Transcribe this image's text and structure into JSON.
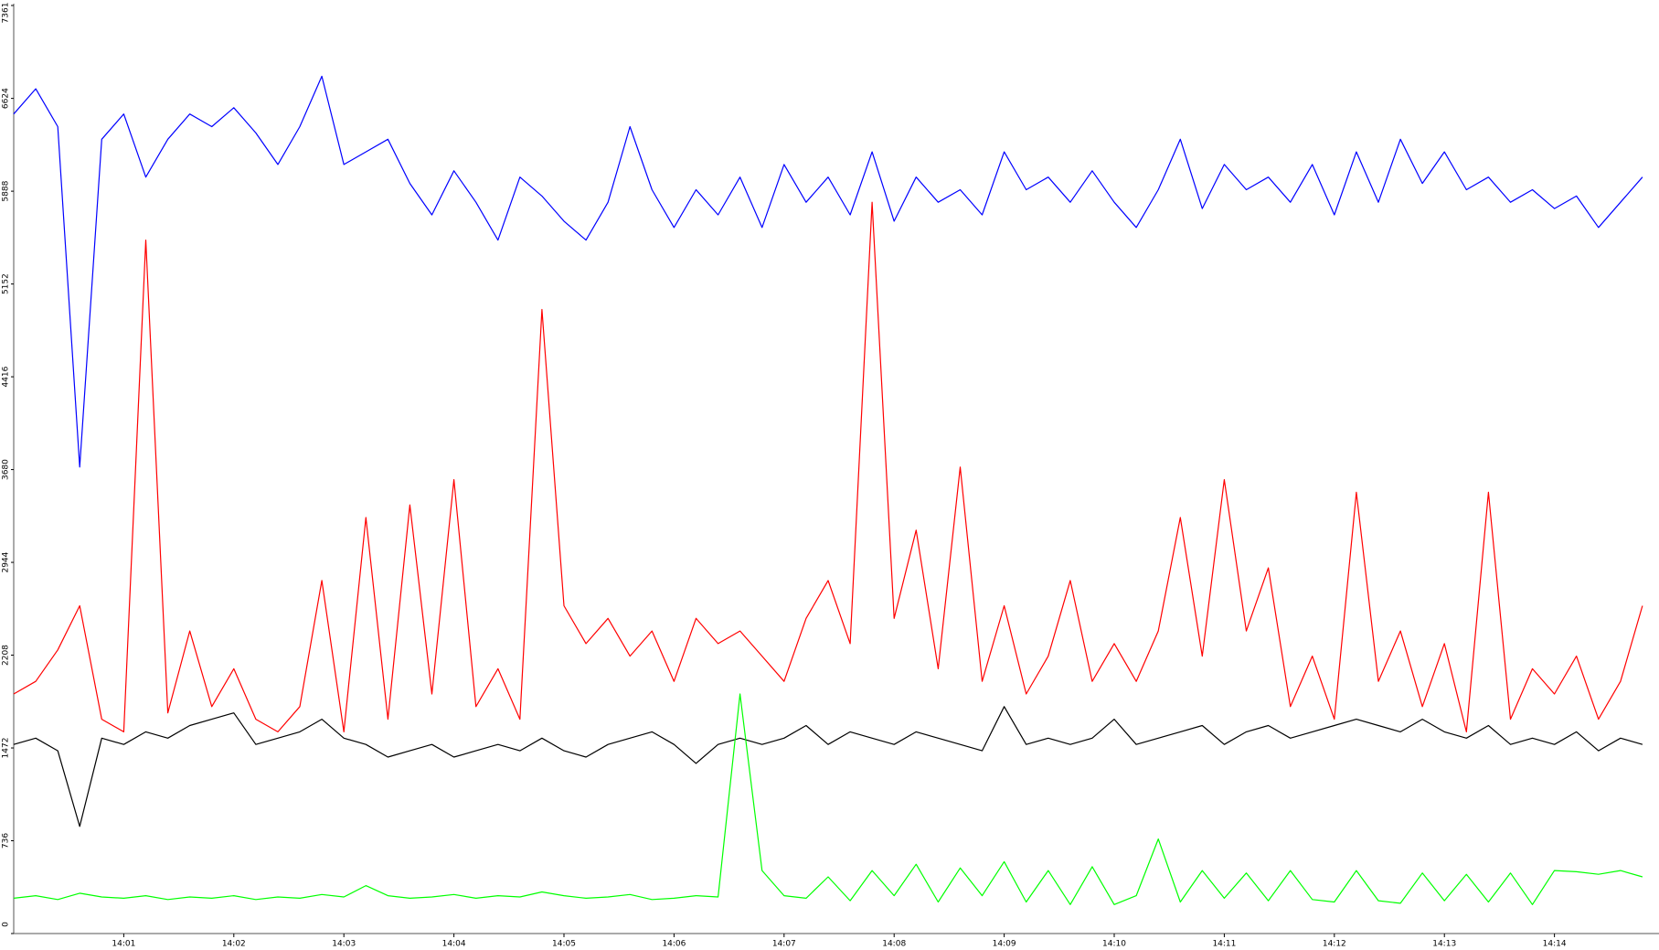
{
  "chart_data": {
    "type": "line",
    "xlim": [
      0,
      14.95
    ],
    "xticks": [
      {
        "value": 1,
        "label": "14:01"
      },
      {
        "value": 2,
        "label": "14:02"
      },
      {
        "value": 3,
        "label": "14:03"
      },
      {
        "value": 4,
        "label": "14:04"
      },
      {
        "value": 5,
        "label": "14:05"
      },
      {
        "value": 6,
        "label": "14:06"
      },
      {
        "value": 7,
        "label": "14:07"
      },
      {
        "value": 8,
        "label": "14:08"
      },
      {
        "value": 9,
        "label": "14:09"
      },
      {
        "value": 10,
        "label": "14:10"
      },
      {
        "value": 11,
        "label": "14:11"
      },
      {
        "value": 12,
        "label": "14:12"
      },
      {
        "value": 13,
        "label": "14:13"
      },
      {
        "value": 14,
        "label": "14:14"
      }
    ],
    "ylim": [
      0,
      7361
    ],
    "yticks": [
      0,
      736,
      1472,
      2208,
      2944,
      3680,
      4416,
      5152,
      5888,
      6624,
      7361
    ],
    "grid": false,
    "x": [
      0,
      0.2,
      0.4,
      0.6,
      0.8,
      1.0,
      1.2,
      1.4,
      1.6,
      1.8,
      2.0,
      2.2,
      2.4,
      2.6,
      2.8,
      3.0,
      3.2,
      3.4,
      3.6,
      3.8,
      4.0,
      4.2,
      4.4,
      4.6,
      4.8,
      5.0,
      5.2,
      5.4,
      5.6,
      5.8,
      6.0,
      6.2,
      6.4,
      6.6,
      6.8,
      7.0,
      7.2,
      7.4,
      7.6,
      7.8,
      8.0,
      8.2,
      8.4,
      8.6,
      8.8,
      9.0,
      9.2,
      9.4,
      9.6,
      9.8,
      10.0,
      10.2,
      10.4,
      10.6,
      10.8,
      11.0,
      11.2,
      11.4,
      11.6,
      11.8,
      12.0,
      12.2,
      12.4,
      12.6,
      12.8,
      13.0,
      13.2,
      13.4,
      13.6,
      13.8,
      14.0,
      14.2,
      14.4,
      14.6,
      14.8
    ],
    "series": [
      {
        "color": "#0000ff",
        "values": [
          6500,
          6700,
          6400,
          3700,
          6300,
          6500,
          6000,
          6300,
          6500,
          6400,
          6550,
          6350,
          6100,
          6400,
          6800,
          6100,
          6200,
          6300,
          5950,
          5700,
          6050,
          5800,
          5500,
          6000,
          5850,
          5650,
          5500,
          5800,
          6400,
          5900,
          5600,
          5900,
          5700,
          6000,
          5600,
          6100,
          5800,
          6000,
          5700,
          6200,
          5650,
          6000,
          5800,
          5900,
          5700,
          6200,
          5900,
          6000,
          5800,
          6050,
          5800,
          5600,
          5900,
          6300,
          5750,
          6100,
          5900,
          6000,
          5800,
          6100,
          5700,
          6200,
          5800,
          6300,
          5950,
          6200,
          5900,
          6000,
          5800,
          5900,
          5750,
          5850,
          5600,
          5800,
          6000
        ]
      },
      {
        "color": "#ff0000",
        "values": [
          1900,
          2000,
          2250,
          2600,
          1700,
          1600,
          5500,
          1750,
          2400,
          1800,
          2100,
          1700,
          1600,
          1800,
          2800,
          1600,
          3300,
          1700,
          3400,
          1900,
          3600,
          1800,
          2100,
          1700,
          4950,
          2600,
          2300,
          2500,
          2200,
          2400,
          2000,
          2500,
          2300,
          2400,
          2200,
          2000,
          2500,
          2800,
          2300,
          5800,
          2500,
          3200,
          2100,
          3700,
          2000,
          2600,
          1900,
          2200,
          2800,
          2000,
          2300,
          2000,
          2400,
          3300,
          2200,
          3600,
          2400,
          2900,
          1800,
          2200,
          1700,
          3500,
          2000,
          2400,
          1800,
          2300,
          1600,
          3500,
          1700,
          2100,
          1900,
          2200,
          1700,
          2000,
          2600
        ]
      },
      {
        "color": "#000000",
        "values": [
          1500,
          1550,
          1450,
          850,
          1550,
          1500,
          1600,
          1550,
          1650,
          1700,
          1750,
          1500,
          1550,
          1600,
          1700,
          1550,
          1500,
          1400,
          1450,
          1500,
          1400,
          1450,
          1500,
          1450,
          1550,
          1450,
          1400,
          1500,
          1550,
          1600,
          1500,
          1350,
          1500,
          1550,
          1500,
          1550,
          1650,
          1500,
          1600,
          1550,
          1500,
          1600,
          1550,
          1500,
          1450,
          1800,
          1500,
          1550,
          1500,
          1550,
          1700,
          1500,
          1550,
          1600,
          1650,
          1500,
          1600,
          1650,
          1550,
          1600,
          1650,
          1700,
          1650,
          1600,
          1700,
          1600,
          1550,
          1650,
          1500,
          1550,
          1500,
          1600,
          1450,
          1550,
          1500
        ]
      },
      {
        "color": "#00ff00",
        "values": [
          280,
          300,
          270,
          320,
          290,
          280,
          300,
          270,
          290,
          280,
          300,
          270,
          290,
          280,
          310,
          290,
          380,
          300,
          280,
          290,
          310,
          280,
          300,
          290,
          330,
          300,
          280,
          290,
          310,
          270,
          280,
          300,
          290,
          1900,
          500,
          300,
          280,
          450,
          260,
          500,
          300,
          550,
          250,
          520,
          300,
          570,
          250,
          500,
          230,
          530,
          230,
          300,
          750,
          250,
          500,
          280,
          480,
          260,
          500,
          270,
          250,
          500,
          260,
          240,
          480,
          260,
          470,
          250,
          480,
          230,
          500,
          490,
          470,
          500,
          450
        ]
      }
    ]
  }
}
